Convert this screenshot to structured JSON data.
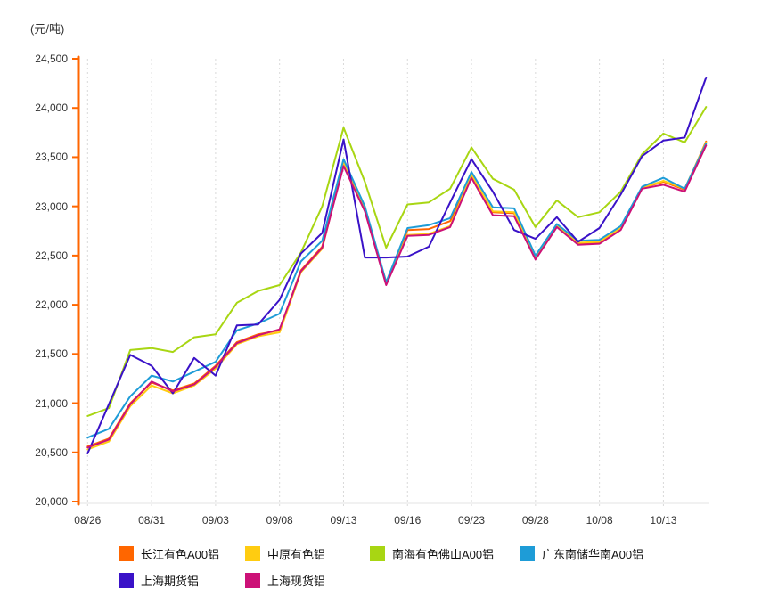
{
  "unit_label": "(元/吨)",
  "chart_data": {
    "type": "line",
    "title": "",
    "ylabel": "(元/吨)",
    "xlabel": "",
    "ylim": [
      20000,
      24500
    ],
    "y_tick_step": 500,
    "y_tick_labels": [
      "24,500",
      "24,000",
      "23,500",
      "23,000",
      "22,500",
      "22,000",
      "21,500",
      "21,000",
      "20,500",
      "20,000"
    ],
    "y_tick_values": [
      24500,
      24000,
      23500,
      23000,
      22500,
      22000,
      21500,
      21000,
      20500,
      20000
    ],
    "x_labels": [
      "08/26",
      "08/31",
      "09/03",
      "09/08",
      "09/13",
      "09/16",
      "09/23",
      "09/28",
      "10/08",
      "10/13"
    ],
    "x_label_point_indices": [
      0,
      3,
      6,
      9,
      12,
      15,
      18,
      21,
      24,
      27
    ],
    "points_per_series": 30,
    "grid": "vertical-dotted",
    "legend_position": "bottom",
    "axis_color": "#ff6600",
    "gridline_color": "#d9d9d9",
    "series": [
      {
        "id": "changjiang-a00",
        "name": "长江有色A00铝",
        "color": "#ff6600",
        "values": [
          20560,
          20640,
          21000,
          21210,
          21130,
          21200,
          21380,
          21620,
          21700,
          21740,
          22350,
          22590,
          23430,
          22980,
          22210,
          22760,
          22770,
          22850,
          23300,
          22940,
          22930,
          22470,
          22800,
          22620,
          22630,
          22770,
          23190,
          23250,
          23170,
          23660
        ]
      },
      {
        "id": "zhongyuan",
        "name": "中原有色铝",
        "color": "#ffcc11",
        "values": [
          20530,
          20610,
          20970,
          21180,
          21100,
          21180,
          21350,
          21600,
          21680,
          21720,
          22330,
          22570,
          23440,
          22960,
          22230,
          22710,
          22720,
          22800,
          23320,
          22950,
          22940,
          22480,
          22810,
          22630,
          22640,
          22780,
          23190,
          23260,
          23180,
          23650
        ]
      },
      {
        "id": "nanhai-foshan-a00",
        "name": "南海有色佛山A00铝",
        "color": "#a8d613",
        "values": [
          20870,
          20950,
          21540,
          21560,
          21520,
          21670,
          21700,
          22020,
          22140,
          22200,
          22530,
          23000,
          23800,
          23250,
          22580,
          23020,
          23040,
          23180,
          23600,
          23280,
          23170,
          22790,
          23060,
          22890,
          22940,
          23150,
          23530,
          23740,
          23650,
          24010
        ]
      },
      {
        "id": "guangdong-nanchu-a00",
        "name": "广东南储华南A00铝",
        "color": "#1e9cd7",
        "values": [
          20650,
          20740,
          21070,
          21280,
          21220,
          21320,
          21420,
          21740,
          21810,
          21910,
          22440,
          22650,
          23480,
          23000,
          22230,
          22780,
          22810,
          22880,
          23350,
          22990,
          22980,
          22500,
          22820,
          22650,
          22660,
          22800,
          23200,
          23290,
          23180,
          23640
        ]
      },
      {
        "id": "shanghai-qihuo",
        "name": "上海期货铝",
        "color": "#3a12c8",
        "values": [
          20490,
          20990,
          21490,
          21380,
          21100,
          21460,
          21280,
          21790,
          21800,
          22050,
          22520,
          22730,
          23680,
          22480,
          22480,
          22490,
          22590,
          23040,
          23480,
          23150,
          22760,
          22670,
          22890,
          22640,
          22780,
          23120,
          23510,
          23670,
          23700,
          24310
        ]
      },
      {
        "id": "shanghai-xianhuo",
        "name": "上海现货铝",
        "color": "#cc1177",
        "values": [
          20550,
          20630,
          20990,
          21220,
          21120,
          21190,
          21370,
          21610,
          21690,
          21750,
          22340,
          22580,
          23410,
          22950,
          22200,
          22700,
          22710,
          22790,
          23290,
          22910,
          22900,
          22460,
          22790,
          22610,
          22620,
          22760,
          23180,
          23220,
          23150,
          23620
        ]
      }
    ],
    "legend_rows": [
      [
        0,
        1,
        2,
        3
      ],
      [
        4,
        5
      ]
    ]
  }
}
